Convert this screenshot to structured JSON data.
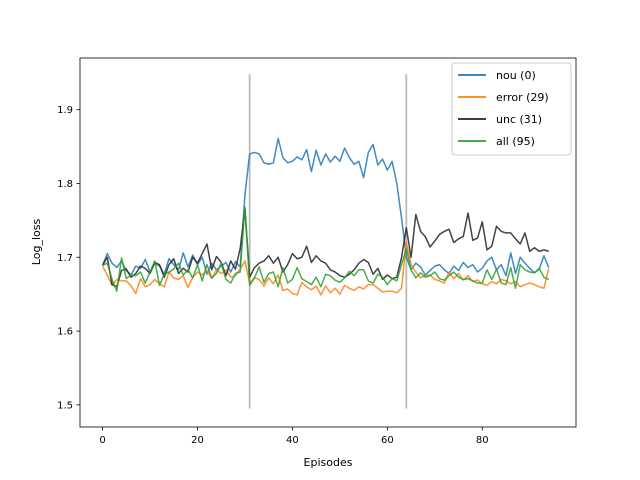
{
  "chart_data": {
    "type": "line",
    "xlabel": "Episodes",
    "ylabel": "Log_loss",
    "xlim": [
      -4.75,
      99.75
    ],
    "ylim": [
      1.47,
      1.97
    ],
    "xticks": [
      0,
      20,
      40,
      60,
      80
    ],
    "yticks": [
      1.5,
      1.6,
      1.7,
      1.8,
      1.9
    ],
    "grid": false,
    "legend_position": "top-right",
    "vlines": [
      {
        "x": 31,
        "ymin": 1.495,
        "ymax": 1.948,
        "color": "#bbbbbb"
      },
      {
        "x": 64,
        "ymin": 1.495,
        "ymax": 1.948,
        "color": "#bbbbbb"
      }
    ],
    "x": [
      0,
      1,
      2,
      3,
      4,
      5,
      6,
      7,
      8,
      9,
      10,
      11,
      12,
      13,
      14,
      15,
      16,
      17,
      18,
      19,
      20,
      21,
      22,
      23,
      24,
      25,
      26,
      27,
      28,
      29,
      30,
      31,
      32,
      33,
      34,
      35,
      36,
      37,
      38,
      39,
      40,
      41,
      42,
      43,
      44,
      45,
      46,
      47,
      48,
      49,
      50,
      51,
      52,
      53,
      54,
      55,
      56,
      57,
      58,
      59,
      60,
      61,
      62,
      63,
      64,
      65,
      66,
      67,
      68,
      69,
      70,
      71,
      72,
      73,
      74,
      75,
      76,
      77,
      78,
      79,
      80,
      81,
      82,
      83,
      84,
      85,
      86,
      87,
      88,
      89,
      90,
      91,
      92,
      93,
      94
    ],
    "series": [
      {
        "name": "nou (0)",
        "color": "#1f77b4",
        "values": [
          1.689,
          1.705,
          1.692,
          1.686,
          1.695,
          1.682,
          1.676,
          1.688,
          1.685,
          1.697,
          1.68,
          1.692,
          1.688,
          1.677,
          1.698,
          1.69,
          1.683,
          1.706,
          1.687,
          1.703,
          1.69,
          1.7,
          1.677,
          1.692,
          1.683,
          1.688,
          1.693,
          1.68,
          1.694,
          1.687,
          1.785,
          1.84,
          1.842,
          1.84,
          1.828,
          1.826,
          1.828,
          1.861,
          1.835,
          1.828,
          1.83,
          1.836,
          1.832,
          1.846,
          1.816,
          1.845,
          1.825,
          1.84,
          1.829,
          1.837,
          1.83,
          1.848,
          1.835,
          1.826,
          1.83,
          1.808,
          1.842,
          1.853,
          1.825,
          1.833,
          1.818,
          1.83,
          1.8,
          1.753,
          1.7,
          1.683,
          1.692,
          1.687,
          1.676,
          1.682,
          1.688,
          1.69,
          1.683,
          1.678,
          1.688,
          1.682,
          1.693,
          1.686,
          1.69,
          1.68,
          1.685,
          1.695,
          1.7,
          1.683,
          1.69,
          1.675,
          1.706,
          1.678,
          1.7,
          1.692,
          1.685,
          1.679,
          1.684,
          1.702,
          1.686
        ]
      },
      {
        "name": "error (29)",
        "color": "#ff7f0e",
        "values": [
          1.688,
          1.676,
          1.662,
          1.67,
          1.668,
          1.668,
          1.661,
          1.651,
          1.671,
          1.66,
          1.663,
          1.67,
          1.664,
          1.66,
          1.68,
          1.672,
          1.67,
          1.675,
          1.659,
          1.673,
          1.68,
          1.676,
          1.682,
          1.671,
          1.683,
          1.678,
          1.683,
          1.673,
          1.675,
          1.684,
          1.695,
          1.665,
          1.672,
          1.67,
          1.661,
          1.672,
          1.664,
          1.676,
          1.655,
          1.657,
          1.651,
          1.649,
          1.666,
          1.66,
          1.656,
          1.661,
          1.649,
          1.661,
          1.652,
          1.658,
          1.65,
          1.662,
          1.658,
          1.655,
          1.66,
          1.657,
          1.663,
          1.663,
          1.658,
          1.653,
          1.654,
          1.654,
          1.652,
          1.658,
          1.721,
          1.69,
          1.68,
          1.672,
          1.675,
          1.676,
          1.67,
          1.668,
          1.665,
          1.68,
          1.671,
          1.678,
          1.669,
          1.675,
          1.667,
          1.669,
          1.664,
          1.662,
          1.667,
          1.664,
          1.67,
          1.668,
          1.664,
          1.667,
          1.66,
          1.663,
          1.665,
          1.663,
          1.66,
          1.658,
          1.685
        ]
      },
      {
        "name": "unc (31)",
        "color": "#222222",
        "values": [
          1.689,
          1.7,
          1.663,
          1.66,
          1.682,
          1.684,
          1.673,
          1.678,
          1.688,
          1.685,
          1.678,
          1.693,
          1.69,
          1.673,
          1.69,
          1.698,
          1.678,
          1.685,
          1.68,
          1.7,
          1.692,
          1.705,
          1.718,
          1.683,
          1.701,
          1.693,
          1.675,
          1.695,
          1.684,
          1.712,
          1.765,
          1.673,
          1.686,
          1.692,
          1.695,
          1.702,
          1.692,
          1.7,
          1.68,
          1.69,
          1.705,
          1.698,
          1.7,
          1.715,
          1.693,
          1.702,
          1.695,
          1.692,
          1.683,
          1.68,
          1.675,
          1.673,
          1.677,
          1.683,
          1.692,
          1.697,
          1.693,
          1.677,
          1.685,
          1.67,
          1.676,
          1.671,
          1.673,
          1.7,
          1.74,
          1.7,
          1.758,
          1.735,
          1.728,
          1.714,
          1.722,
          1.731,
          1.735,
          1.738,
          1.72,
          1.725,
          1.728,
          1.76,
          1.723,
          1.726,
          1.748,
          1.71,
          1.715,
          1.742,
          1.735,
          1.733,
          1.733,
          1.725,
          1.718,
          1.733,
          1.708,
          1.713,
          1.708,
          1.71,
          1.708
        ]
      },
      {
        "name": "all (95)",
        "color": "#2ca02c",
        "values": [
          1.689,
          1.692,
          1.67,
          1.654,
          1.699,
          1.671,
          1.676,
          1.675,
          1.68,
          1.665,
          1.68,
          1.695,
          1.662,
          1.677,
          1.68,
          1.684,
          1.692,
          1.676,
          1.683,
          1.672,
          1.69,
          1.668,
          1.69,
          1.672,
          1.678,
          1.692,
          1.67,
          1.665,
          1.678,
          1.68,
          1.768,
          1.662,
          1.672,
          1.687,
          1.666,
          1.678,
          1.68,
          1.66,
          1.686,
          1.665,
          1.67,
          1.686,
          1.671,
          1.667,
          1.663,
          1.673,
          1.66,
          1.677,
          1.675,
          1.669,
          1.666,
          1.672,
          1.681,
          1.675,
          1.683,
          1.683,
          1.668,
          1.665,
          1.677,
          1.673,
          1.663,
          1.671,
          1.668,
          1.69,
          1.712,
          1.683,
          1.672,
          1.679,
          1.673,
          1.675,
          1.68,
          1.671,
          1.669,
          1.675,
          1.68,
          1.673,
          1.67,
          1.671,
          1.668,
          1.665,
          1.665,
          1.683,
          1.67,
          1.684,
          1.665,
          1.663,
          1.686,
          1.658,
          1.69,
          1.683,
          1.68,
          1.679,
          1.685,
          1.673,
          1.67
        ]
      }
    ]
  }
}
